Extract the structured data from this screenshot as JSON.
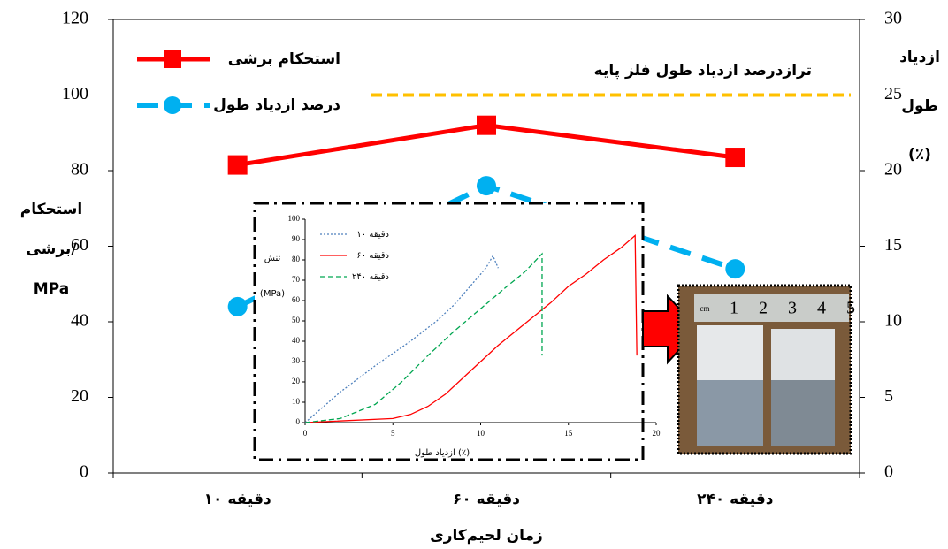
{
  "chart_data": {
    "type": "line",
    "xlabel": "زمان لحیم‌کاری",
    "ylabel": [
      "استحکام",
      "برشی/",
      "MPa"
    ],
    "y2label": [
      "ازدیاد",
      "طول",
      "(٪)"
    ],
    "categories": [
      "۱۰ دقیقه",
      "۶۰ دقیقه",
      "۲۴۰ دقیقه"
    ],
    "ylim": [
      0,
      120
    ],
    "yticks": [
      0,
      20,
      40,
      60,
      80,
      100,
      120
    ],
    "y2lim": [
      0,
      30
    ],
    "y2ticks": [
      0,
      5,
      10,
      15,
      20,
      25,
      30
    ],
    "legend": "upper left",
    "series": [
      {
        "name": "استحکام برشی",
        "color": "#ff0000",
        "values": [
          81.5,
          92,
          83.5
        ]
      },
      {
        "name": "درصد ازدیاد طول",
        "color": "#00b0f0",
        "axis": "y2",
        "values": [
          11,
          19,
          13.5
        ]
      }
    ],
    "reference": {
      "label": "ترازدرصد ازدیاد طول فلز پایه",
      "value": 25,
      "axis": "y2",
      "color": "#ffc000"
    },
    "inset": {
      "type": "line",
      "xlabel": "ازدیاد طول (٪)",
      "ylabel": [
        "تنش",
        "(MPa)"
      ],
      "xlim": [
        0,
        20
      ],
      "xticks": [
        0,
        5,
        10,
        15,
        20
      ],
      "ylim": [
        0,
        100
      ],
      "yticks": [
        0,
        10,
        20,
        30,
        40,
        50,
        60,
        70,
        80,
        90,
        100
      ],
      "series": [
        {
          "name": "۱۰ دقیقه",
          "color": "#4f81bd",
          "style": "dotted",
          "x": [
            0,
            2,
            4,
            6,
            7.5,
            8.5,
            9.5,
            10.3,
            10.7,
            11
          ],
          "y": [
            0,
            15,
            28,
            40,
            50,
            58,
            68,
            76,
            82,
            76
          ]
        },
        {
          "name": "۶۰ دقیقه",
          "color": "#ff0000",
          "style": "solid",
          "x": [
            0,
            5,
            6,
            7,
            8,
            9,
            10,
            11,
            12,
            13,
            14,
            15,
            16,
            17,
            18,
            18.8,
            18.9
          ],
          "y": [
            0,
            2,
            4,
            8,
            14,
            22,
            30,
            38,
            45,
            52,
            59,
            67,
            73,
            80,
            86,
            92,
            33
          ]
        },
        {
          "name": "۲۴۰ دقیقه",
          "color": "#00a650",
          "style": "dashed",
          "x": [
            0,
            2,
            4,
            5.5,
            7,
            8.5,
            10,
            11.5,
            12.5,
            13.5,
            13.5
          ],
          "y": [
            0,
            2,
            9,
            20,
            33,
            45,
            56,
            67,
            74,
            83,
            33
          ]
        }
      ]
    },
    "photo_labels": [
      "cm",
      "1",
      "2",
      "3",
      "4",
      "5"
    ]
  }
}
